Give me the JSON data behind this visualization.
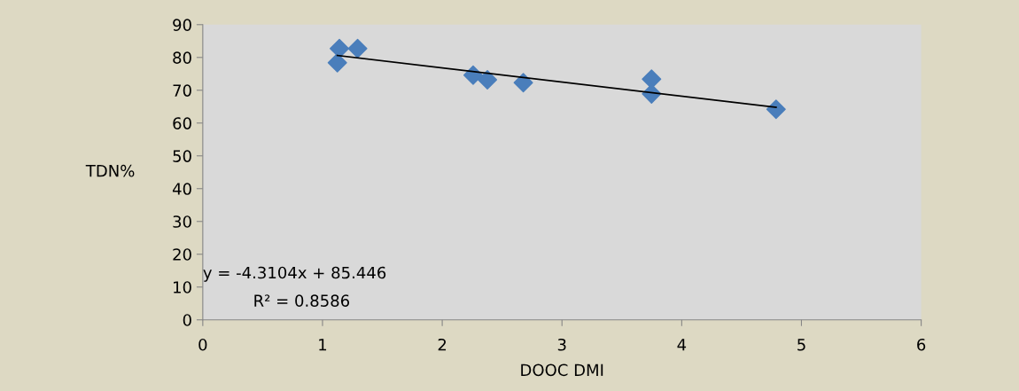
{
  "chart_data": {
    "type": "scatter",
    "xlabel": "DOOC DMI",
    "ylabel": "TDN%",
    "xlim": [
      0,
      6
    ],
    "xticks": [
      0,
      1,
      2,
      3,
      4,
      5,
      6
    ],
    "ylim": [
      0,
      90
    ],
    "yticks": [
      0,
      10,
      20,
      30,
      40,
      50,
      60,
      70,
      80,
      90
    ],
    "marker": "diamond",
    "grid": false,
    "legend": false,
    "series": [
      {
        "color": "#4a7ebb",
        "x": [
          1.124,
          1.141,
          1.293,
          2.258,
          2.377,
          2.677,
          3.748,
          3.748,
          4.788
        ],
        "values": [
          78.4,
          82.7,
          82.7,
          74.6,
          73.2,
          72.3,
          73.4,
          68.9,
          64.2
        ]
      },
      {
        "type": "line",
        "color": "#000000",
        "line_style": "solid",
        "marker": "none",
        "x": [
          1.124,
          4.788
        ],
        "values": [
          80.6,
          64.8
        ]
      }
    ],
    "annotations": [
      "y = -4.3104x + 85.446",
      "R² = 0.8586"
    ]
  }
}
